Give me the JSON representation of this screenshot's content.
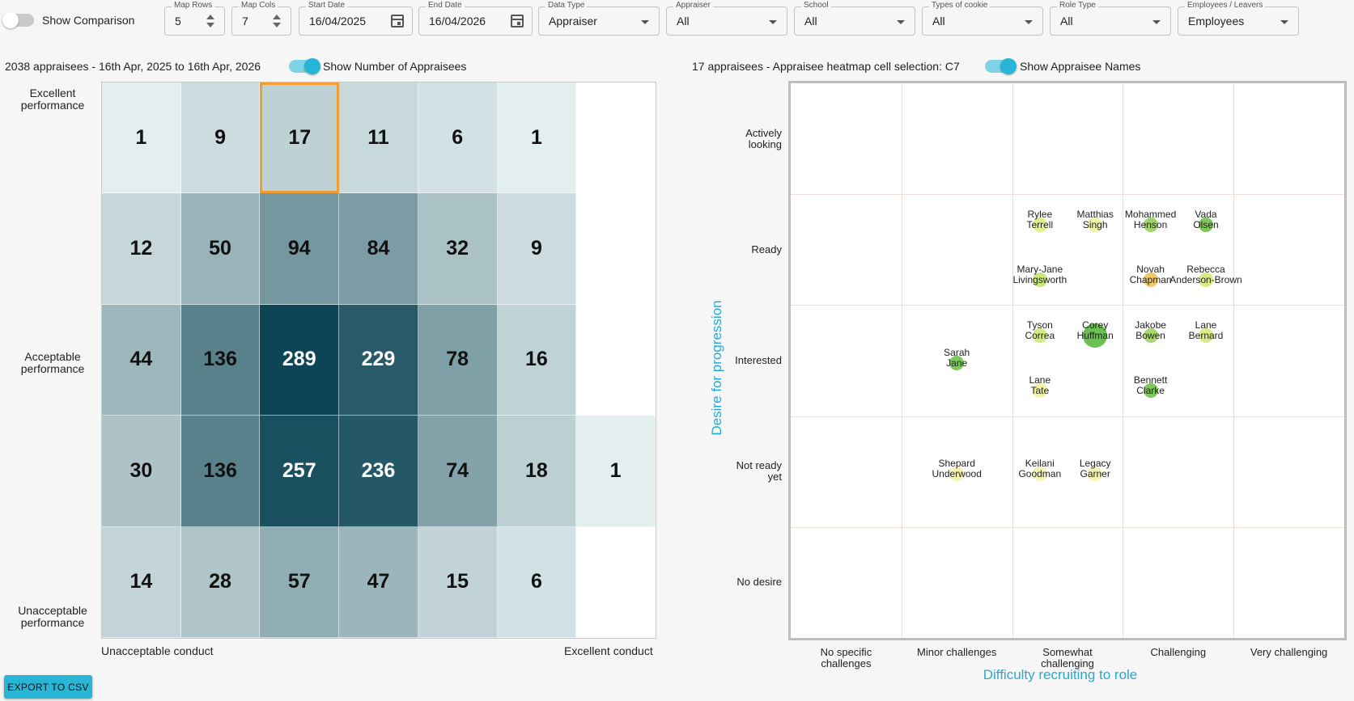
{
  "toolbar": {
    "show_comparison": "Show Comparison",
    "map_rows": {
      "label": "Map Rows",
      "value": "5"
    },
    "map_cols": {
      "label": "Map Cols",
      "value": "7"
    },
    "start_date": {
      "label": "Start Date",
      "value": "16/04/2025"
    },
    "end_date": {
      "label": "End Date",
      "value": "16/04/2026"
    },
    "data_type": {
      "label": "Data Type",
      "value": "Appraiser"
    },
    "appraiser": {
      "label": "Appraiser",
      "value": "All"
    },
    "school": {
      "label": "School",
      "value": "All"
    },
    "cookie": {
      "label": "Types of cookie",
      "value": "All"
    },
    "role_type": {
      "label": "Role Type",
      "value": "All"
    },
    "employees": {
      "label": "Employees / Leavers",
      "value": "Employees"
    }
  },
  "heatmap": {
    "summary": "2038 appraisees - 16th Apr, 2025 to 16th Apr, 2026",
    "show_number_label": "Show Number of Appraisees",
    "y_labels": {
      "top": "Excellent\nperformance",
      "mid": "Acceptable\nperformance",
      "bottom": "Unacceptable\nperformance"
    },
    "x_labels": {
      "left": "Unacceptable conduct",
      "right": "Excellent conduct"
    },
    "grid": [
      [
        1,
        9,
        17,
        11,
        6,
        1,
        null
      ],
      [
        12,
        50,
        94,
        84,
        32,
        9,
        null
      ],
      [
        44,
        136,
        289,
        229,
        78,
        16,
        null
      ],
      [
        30,
        136,
        257,
        236,
        74,
        18,
        1
      ],
      [
        14,
        28,
        57,
        47,
        15,
        6,
        null
      ]
    ],
    "selected_cell": {
      "row": 0,
      "col": 2
    },
    "colors": {
      "low": "#edf6f6",
      "high": "#0d4556",
      "selected_border": "#f39c32"
    }
  },
  "scatter": {
    "summary": "17 appraisees - Appraisee heatmap cell selection: C7",
    "show_names_label": "Show Appraisee Names",
    "y_axis_title": "Desire for progression",
    "x_axis_title": "Difficulty recruiting to role",
    "y_categories": [
      "Actively\nlooking",
      "Ready",
      "Interested",
      "Not ready\nyet",
      "No desire"
    ],
    "x_categories": [
      "No specific\nchallenges",
      "Minor challenges",
      "Somewhat\nchallenging",
      "Challenging",
      "Very challenging"
    ],
    "points": [
      {
        "name": "Rylee\nTerrell",
        "x": 2.25,
        "y": 1.25,
        "color": "#e3ef8a",
        "size": "s"
      },
      {
        "name": "Matthias\nSingh",
        "x": 2.75,
        "y": 1.25,
        "color": "#f1f5a8",
        "size": "s"
      },
      {
        "name": "Mohammed\nHenson",
        "x": 3.25,
        "y": 1.25,
        "color": "#9fd46a",
        "size": "s"
      },
      {
        "name": "Vada\nOlsen",
        "x": 3.75,
        "y": 1.25,
        "color": "#7ec85a",
        "size": "s"
      },
      {
        "name": "Mary-Jane\nLivingsworth",
        "x": 2.25,
        "y": 1.75,
        "color": "#c9e57c",
        "size": "s"
      },
      {
        "name": "Novah\nChapman",
        "x": 3.25,
        "y": 1.75,
        "color": "#f2c86f",
        "size": "s"
      },
      {
        "name": "Rebecca\nAnderson-Brown",
        "x": 3.75,
        "y": 1.75,
        "color": "#d9ec86",
        "size": "s"
      },
      {
        "name": "Tyson\nCorrea",
        "x": 2.25,
        "y": 2.25,
        "color": "#d3ea82",
        "size": "s"
      },
      {
        "name": "Corey\nHuffman",
        "x": 2.75,
        "y": 2.25,
        "color": "#6cbf52",
        "size": "l"
      },
      {
        "name": "Jakobe\nBowen",
        "x": 3.25,
        "y": 2.25,
        "color": "#a8d870",
        "size": "s"
      },
      {
        "name": "Lane\nBernard",
        "x": 3.75,
        "y": 2.25,
        "color": "#d9ec86",
        "size": "s"
      },
      {
        "name": "Sarah\nJane",
        "x": 1.5,
        "y": 2.5,
        "color": "#7ec85a",
        "size": "s"
      },
      {
        "name": "Lane\nTate",
        "x": 2.25,
        "y": 2.75,
        "color": "#f3f3a6",
        "size": "s"
      },
      {
        "name": "Bennett\nClarke",
        "x": 3.25,
        "y": 2.75,
        "color": "#7ec85a",
        "size": "s"
      },
      {
        "name": "Shepard\nUnderwood",
        "x": 1.5,
        "y": 3.5,
        "color": "#f4f4b4",
        "size": "s"
      },
      {
        "name": "Keilani\nGoodman",
        "x": 2.25,
        "y": 3.5,
        "color": "#f4f4b4",
        "size": "s"
      },
      {
        "name": "Legacy\nGarner",
        "x": 2.75,
        "y": 3.5,
        "color": "#f4f4b4",
        "size": "s"
      }
    ]
  },
  "export_label": "EXPORT TO CSV"
}
